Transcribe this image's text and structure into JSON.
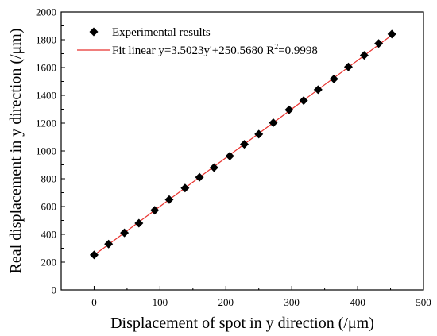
{
  "chart_data": {
    "type": "scatter",
    "xlabel": "Displacement of spot in y direction (/μm)",
    "ylabel": "Real displacement in y direction (/μm)",
    "xlim": [
      -50,
      500
    ],
    "ylim": [
      0,
      2000
    ],
    "xticks": [
      0,
      100,
      200,
      300,
      400,
      500
    ],
    "yticks": [
      0,
      200,
      400,
      600,
      800,
      1000,
      1200,
      1400,
      1600,
      1800,
      2000
    ],
    "grid": false,
    "legend_position": "top-left",
    "series": [
      {
        "name": "Experimental results",
        "marker": "diamond",
        "color": "#000000",
        "x": [
          0,
          22,
          46,
          68,
          92,
          114,
          138,
          160,
          182,
          206,
          228,
          250,
          272,
          296,
          318,
          340,
          364,
          386,
          410,
          432,
          452
        ],
        "y": [
          252,
          330,
          411,
          480,
          573,
          650,
          733,
          811,
          880,
          963,
          1048,
          1121,
          1203,
          1296,
          1362,
          1441,
          1518,
          1604,
          1688,
          1773,
          1841
        ]
      },
      {
        "name_prefix": "Fit linear y=3.5023y'+250.5680 R",
        "name_sup": "2",
        "name_suffix": "=0.9998",
        "type": "line",
        "color": "#e8322e",
        "slope": 3.5023,
        "intercept": 250.568,
        "x_range": [
          0,
          452
        ]
      }
    ]
  }
}
